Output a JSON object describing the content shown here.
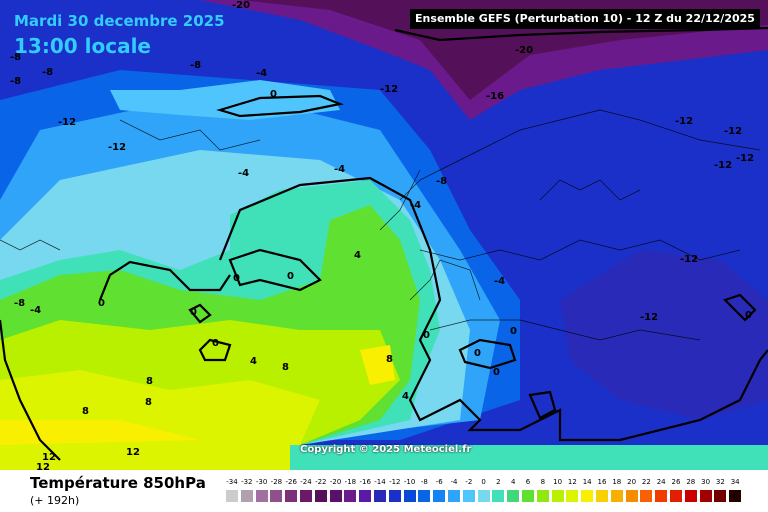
{
  "header": {
    "date": "Mardi 30 decembre 2025",
    "time": "13:00 locale",
    "run": "Ensemble GEFS  (Perturbation 10)  -  12 Z du 22/12/2025"
  },
  "footer": {
    "variable": "Température 850hPa",
    "lead": "(+ 192h)",
    "copyright": "Copyright © 2025 Meteociel.fr"
  },
  "legend": {
    "ticks": [
      "-34",
      "-32",
      "-30",
      "-28",
      "-26",
      "-24",
      "-22",
      "-20",
      "-18",
      "-16",
      "-14",
      "-12",
      "-10",
      "-8",
      "-6",
      "-4",
      "-2",
      "0",
      "2",
      "4",
      "6",
      "8",
      "10",
      "12",
      "14",
      "16",
      "18",
      "20",
      "22",
      "24",
      "26",
      "28",
      "30",
      "32",
      "34"
    ],
    "colors": [
      "#cccccc",
      "#b0a0b0",
      "#a070a0",
      "#90508c",
      "#7d307a",
      "#6a1a68",
      "#55105a",
      "#58106a",
      "#6a1a8a",
      "#5a1aa8",
      "#2a2ab8",
      "#1a30c8",
      "#0a48d8",
      "#0a64e8",
      "#1484f4",
      "#30a4f8",
      "#50c4fc",
      "#78d8f0",
      "#40e0b8",
      "#40d878",
      "#60e030",
      "#90e810",
      "#b8f000",
      "#dcf400",
      "#f8f000",
      "#f8d000",
      "#f8b000",
      "#f88c00",
      "#f86000",
      "#f03c00",
      "#e02000",
      "#c80000",
      "#a00000",
      "#700000",
      "#200000"
    ]
  },
  "map": {
    "contour_labels": [
      {
        "text": "-20",
        "lon_area": "arctic-north-center"
      },
      {
        "text": "-20",
        "lon_area": "arctic-east"
      },
      {
        "text": "-16",
        "lon_area": "arctic-east"
      },
      {
        "text": "-12"
      },
      {
        "text": "-12"
      },
      {
        "text": "-12"
      },
      {
        "text": "-12"
      },
      {
        "text": "-12"
      },
      {
        "text": "-12"
      },
      {
        "text": "-12"
      },
      {
        "text": "-12"
      },
      {
        "text": "-12"
      },
      {
        "text": "-8"
      },
      {
        "text": "-8"
      },
      {
        "text": "-8"
      },
      {
        "text": "-8"
      },
      {
        "text": "-8"
      },
      {
        "text": "-8"
      },
      {
        "text": "-4"
      },
      {
        "text": "-4"
      },
      {
        "text": "-4"
      },
      {
        "text": "-4"
      },
      {
        "text": "-4"
      },
      {
        "text": "-4"
      },
      {
        "text": "0"
      },
      {
        "text": "0"
      },
      {
        "text": "0"
      },
      {
        "text": "0"
      },
      {
        "text": "0"
      },
      {
        "text": "0"
      },
      {
        "text": "0"
      },
      {
        "text": "0"
      },
      {
        "text": "0"
      },
      {
        "text": "0"
      },
      {
        "text": "0"
      },
      {
        "text": "4"
      },
      {
        "text": "4"
      },
      {
        "text": "4"
      },
      {
        "text": "8"
      },
      {
        "text": "8"
      },
      {
        "text": "8"
      },
      {
        "text": "8"
      },
      {
        "text": "8"
      },
      {
        "text": "12"
      },
      {
        "text": "12"
      },
      {
        "text": "12"
      }
    ]
  }
}
